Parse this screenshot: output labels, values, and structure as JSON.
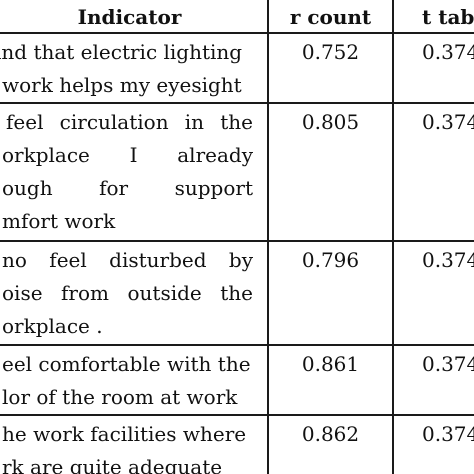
{
  "table": {
    "headers": {
      "indicator": "Indicator",
      "r_count": "r count",
      "t_table": "t table"
    },
    "rows": [
      {
        "indicator_lines": [
          "ind that electric lighting",
          "work helps my eyesight"
        ],
        "r_count": "0.752",
        "t_table": "0.374"
      },
      {
        "indicator_lines": [
          "feel circulation in the",
          "orkplace I already",
          "ough for support",
          "mfort work"
        ],
        "r_count": "0.805",
        "t_table": "0.374"
      },
      {
        "indicator_lines": [
          "no feel disturbed by",
          "oise from outside the",
          "orkplace ."
        ],
        "r_count": "0.796",
        "t_table": "0.374"
      },
      {
        "indicator_lines": [
          "eel comfortable with the",
          "lor of the room at work"
        ],
        "r_count": "0.861",
        "t_table": "0.374"
      },
      {
        "indicator_lines": [
          "he work facilities where I",
          "rk are quite adequate"
        ],
        "r_count": "0.862",
        "t_table": "0.374"
      }
    ]
  }
}
